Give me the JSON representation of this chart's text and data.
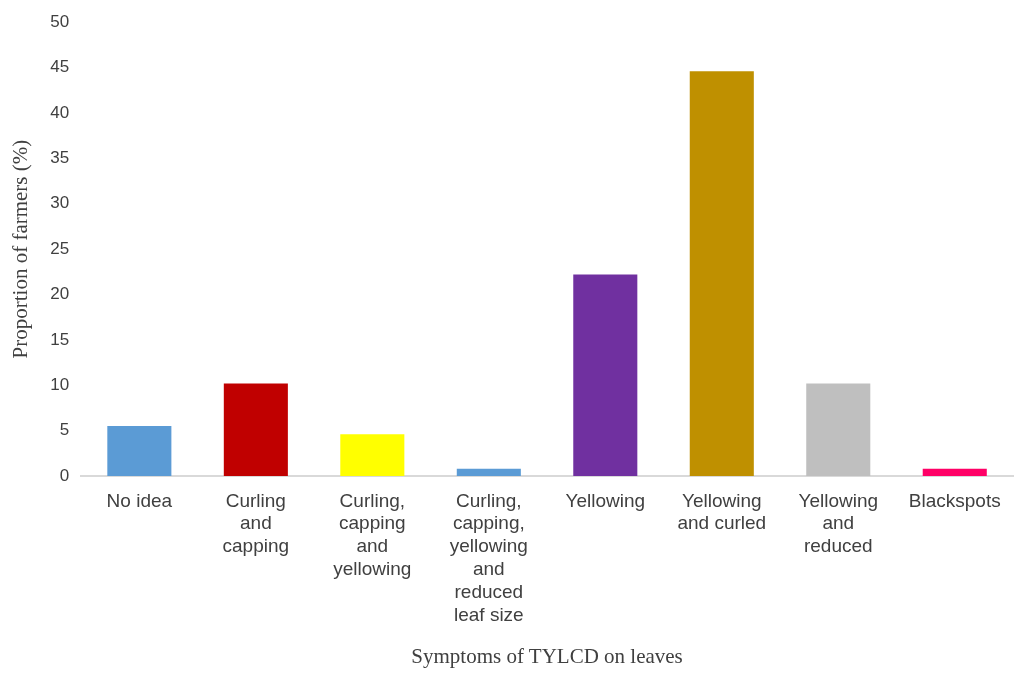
{
  "chart_data": {
    "type": "bar",
    "xlabel": "Symptoms of TYLCD on leaves",
    "ylabel": "Proportion of farmers (%)",
    "categories": [
      "No idea",
      "Curling and capping",
      "Curling, capping and yellowing",
      "Curling, capping, yellowing and reduced leaf size",
      "Yellowing",
      "Yellowing and curled",
      "Yellowing and reduced",
      "Blackspots"
    ],
    "values": [
      5.5,
      10.2,
      4.6,
      0.8,
      22.2,
      44.6,
      10.2,
      0.8
    ],
    "colors": [
      "#5b9bd5",
      "#c00000",
      "#ffff00",
      "#5b9bd5",
      "#7030a0",
      "#bf9000",
      "#bfbfbf",
      "#ff0066"
    ],
    "ylim": [
      0,
      50
    ],
    "yticks": [
      0,
      5,
      10,
      15,
      20,
      25,
      30,
      35,
      40,
      45,
      50
    ],
    "grid": false,
    "legend": false
  }
}
